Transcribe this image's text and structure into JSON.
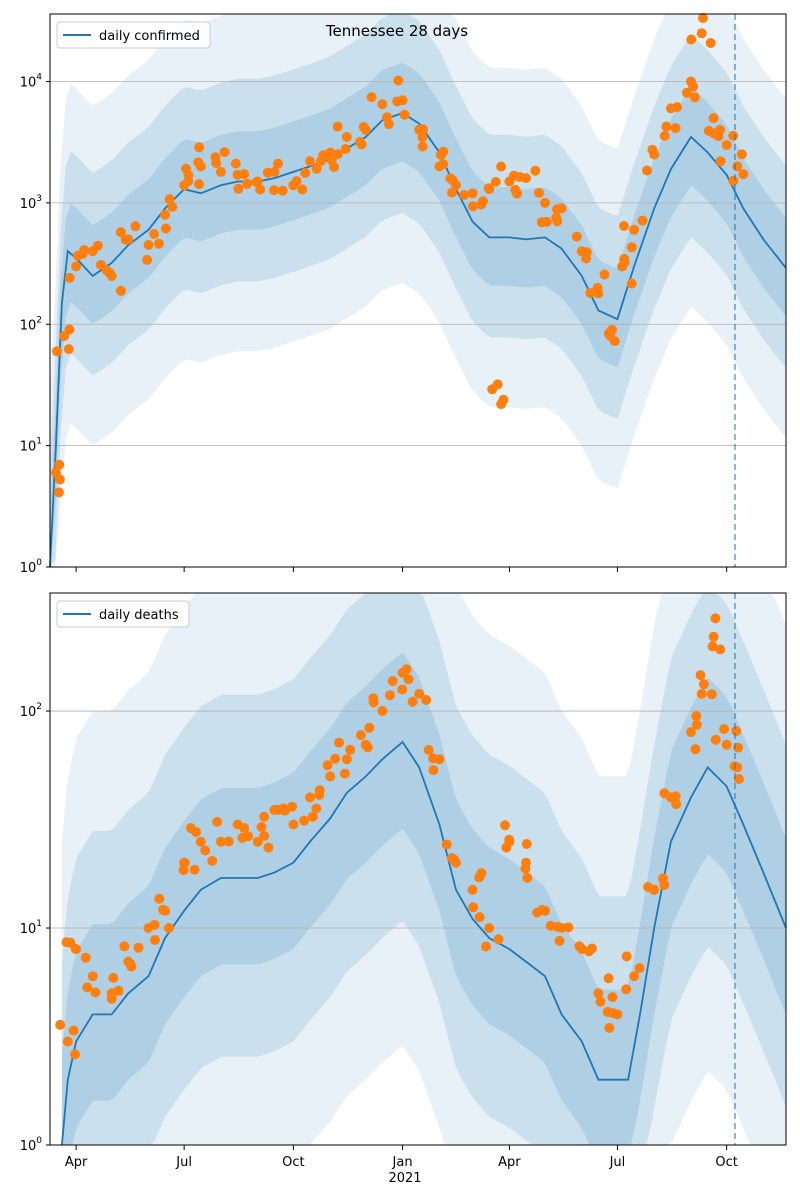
{
  "figure": {
    "title": "Tennessee 28 days",
    "year_label": "2021"
  },
  "colors": {
    "model_line": "#1f77b4",
    "observed_points": "#ff7f0e",
    "band": "#1f77b4",
    "grid": "#b0b0b0",
    "marker_line": "#1f77b4"
  },
  "chart_data": [
    {
      "type": "line",
      "panel": "confirmed",
      "legend": "daily confirmed",
      "yscale": "log",
      "ylim": [
        1,
        36000
      ],
      "xlim": [
        "2020-03-10",
        "2021-11-20"
      ],
      "yticks": [
        1,
        10,
        100,
        1000,
        10000
      ],
      "ytick_labels": [
        [
          "10",
          "0"
        ],
        [
          "10",
          "1"
        ],
        [
          "10",
          "2"
        ],
        [
          "10",
          "3"
        ],
        [
          "10",
          "4"
        ]
      ],
      "xticks": [
        "2020-04-01",
        "2020-07-01",
        "2020-10-01",
        "2021-01-01",
        "2021-04-01",
        "2021-07-01",
        "2021-10-01"
      ],
      "xtick_labels": [
        "Apr",
        "Jul",
        "Oct",
        "Jan",
        "Apr",
        "Jul",
        "Oct"
      ],
      "grid": "horizontal",
      "legend_position": "top-left",
      "forecast_marker": "2021-10-08",
      "model_series": {
        "x": [
          "2020-03-10",
          "2020-03-15",
          "2020-03-20",
          "2020-03-25",
          "2020-04-01",
          "2020-04-15",
          "2020-05-01",
          "2020-05-15",
          "2020-06-01",
          "2020-06-15",
          "2020-07-01",
          "2020-07-15",
          "2020-08-01",
          "2020-08-15",
          "2020-09-01",
          "2020-09-15",
          "2020-10-01",
          "2020-10-15",
          "2020-11-01",
          "2020-11-15",
          "2020-12-01",
          "2020-12-15",
          "2021-01-01",
          "2021-01-15",
          "2021-02-01",
          "2021-02-15",
          "2021-03-01",
          "2021-03-15",
          "2021-04-01",
          "2021-04-15",
          "2021-05-01",
          "2021-05-15",
          "2021-06-01",
          "2021-06-15",
          "2021-07-01",
          "2021-07-15",
          "2021-08-01",
          "2021-08-15",
          "2021-09-01",
          "2021-09-15",
          "2021-10-01",
          "2021-10-15",
          "2021-11-01",
          "2021-11-20"
        ],
        "y": [
          1,
          10,
          150,
          400,
          350,
          250,
          320,
          450,
          600,
          900,
          1300,
          1200,
          1400,
          1500,
          1500,
          1600,
          1800,
          2000,
          2300,
          2800,
          3500,
          4800,
          5500,
          4500,
          2600,
          1300,
          700,
          520,
          520,
          500,
          520,
          420,
          250,
          130,
          110,
          300,
          900,
          1900,
          3500,
          2600,
          1700,
          900,
          500,
          290
        ]
      },
      "observed_series": {
        "x": [
          "2020-03-15",
          "2020-03-22",
          "2020-04-01",
          "2020-04-15",
          "2020-05-01",
          "2020-05-15",
          "2020-06-01",
          "2020-06-15",
          "2020-07-01",
          "2020-07-15",
          "2020-08-01",
          "2020-08-15",
          "2020-09-01",
          "2020-09-15",
          "2020-10-01",
          "2020-10-15",
          "2020-11-01",
          "2020-11-15",
          "2020-12-01",
          "2020-12-15",
          "2021-01-01",
          "2021-01-15",
          "2021-02-01",
          "2021-02-15",
          "2021-03-01",
          "2021-03-15",
          "2021-03-25",
          "2021-04-01",
          "2021-04-15",
          "2021-05-01",
          "2021-05-15",
          "2021-06-01",
          "2021-06-15",
          "2021-06-25",
          "2021-07-05",
          "2021-07-15",
          "2021-08-01",
          "2021-08-15",
          "2021-09-01",
          "2021-09-10",
          "2021-09-20",
          "2021-10-01",
          "2021-10-10"
        ],
        "y": [
          6,
          80,
          300,
          400,
          250,
          500,
          450,
          800,
          1400,
          2000,
          1800,
          1700,
          1500,
          1800,
          1400,
          2200,
          2600,
          3500,
          4000,
          6500,
          7000,
          4000,
          2000,
          1400,
          1200,
          1300,
          22,
          1500,
          1600,
          1000,
          900,
          400,
          180,
          80,
          300,
          600,
          2500,
          6000,
          10000,
          25000,
          5000,
          3000,
          2000
        ]
      }
    },
    {
      "type": "line",
      "panel": "deaths",
      "legend": "daily deaths",
      "yscale": "log",
      "ylim": [
        1,
        350
      ],
      "xlim": [
        "2020-03-10",
        "2021-11-20"
      ],
      "yticks": [
        1,
        10,
        100
      ],
      "ytick_labels": [
        [
          "10",
          "0"
        ],
        [
          "10",
          "1"
        ],
        [
          "10",
          "2"
        ]
      ],
      "xticks": [
        "2020-04-01",
        "2020-07-01",
        "2020-10-01",
        "2021-01-01",
        "2021-04-01",
        "2021-07-01",
        "2021-10-01"
      ],
      "xtick_labels": [
        "Apr",
        "Jul",
        "Oct",
        "Jan",
        "Apr",
        "Jul",
        "Oct"
      ],
      "grid": "horizontal",
      "legend_position": "top-left",
      "forecast_marker": "2021-10-08",
      "model_series": {
        "x": [
          "2020-03-20",
          "2020-03-25",
          "2020-04-01",
          "2020-04-15",
          "2020-05-01",
          "2020-05-15",
          "2020-06-01",
          "2020-06-15",
          "2020-07-01",
          "2020-07-15",
          "2020-08-01",
          "2020-08-15",
          "2020-09-01",
          "2020-09-15",
          "2020-10-01",
          "2020-10-15",
          "2020-11-01",
          "2020-11-15",
          "2020-12-01",
          "2020-12-15",
          "2021-01-01",
          "2021-01-15",
          "2021-02-01",
          "2021-02-15",
          "2021-03-01",
          "2021-03-15",
          "2021-04-01",
          "2021-04-15",
          "2021-05-01",
          "2021-05-15",
          "2021-06-01",
          "2021-06-15",
          "2021-07-01",
          "2021-07-10",
          "2021-07-20",
          "2021-08-01",
          "2021-08-15",
          "2021-09-01",
          "2021-09-15",
          "2021-10-01",
          "2021-10-15",
          "2021-11-01",
          "2021-11-20"
        ],
        "y": [
          1,
          2,
          3,
          4,
          4,
          5,
          6,
          9,
          12,
          15,
          17,
          17,
          17,
          18,
          20,
          25,
          32,
          42,
          50,
          60,
          72,
          55,
          30,
          15,
          11,
          9,
          8,
          7,
          6,
          4,
          3,
          2,
          2,
          2,
          4,
          10,
          25,
          40,
          55,
          45,
          30,
          18,
          10
        ]
      },
      "observed_series": {
        "x": [
          "2020-03-25",
          "2020-04-01",
          "2020-04-15",
          "2020-05-01",
          "2020-05-15",
          "2020-06-01",
          "2020-06-15",
          "2020-07-01",
          "2020-07-15",
          "2020-08-01",
          "2020-08-15",
          "2020-09-01",
          "2020-09-15",
          "2020-10-01",
          "2020-10-15",
          "2020-11-01",
          "2020-11-15",
          "2020-12-01",
          "2020-12-15",
          "2021-01-01",
          "2021-01-15",
          "2021-02-01",
          "2021-02-15",
          "2021-03-01",
          "2021-03-15",
          "2021-04-01",
          "2021-04-15",
          "2021-05-01",
          "2021-05-15",
          "2021-06-01",
          "2021-06-15",
          "2021-07-01",
          "2021-07-15",
          "2021-08-01",
          "2021-08-15",
          "2021-09-01",
          "2021-09-10",
          "2021-09-20",
          "2021-10-01",
          "2021-10-10"
        ],
        "y": [
          3,
          8,
          6,
          5,
          7,
          10,
          12,
          20,
          25,
          25,
          30,
          25,
          35,
          30,
          40,
          50,
          60,
          70,
          100,
          150,
          120,
          60,
          20,
          15,
          10,
          25,
          20,
          12,
          10,
          8,
          5,
          4,
          6,
          15,
          40,
          80,
          120,
          220,
          70,
          55
        ]
      }
    }
  ]
}
